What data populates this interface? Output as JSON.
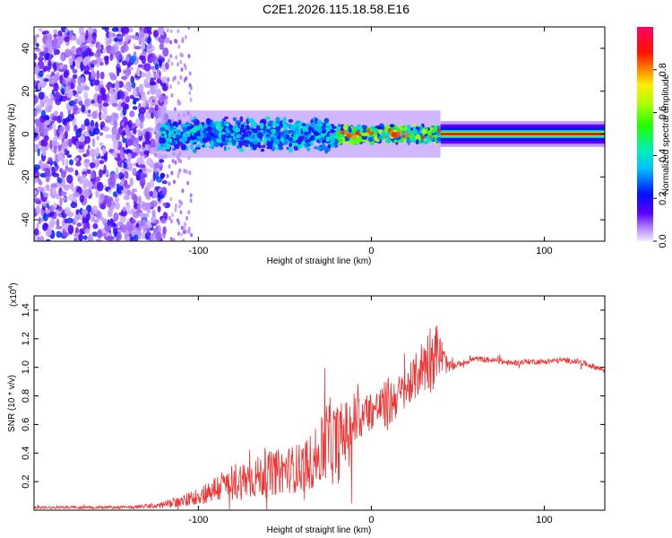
{
  "title": "C2E1.2026.115.18.58.E16",
  "chart_data": [
    {
      "type": "heatmap",
      "xlabel": "Height of straight line (km)",
      "ylabel": "Frequency (Hz)",
      "xlim": [
        -195,
        135
      ],
      "ylim": [
        -50,
        50
      ],
      "xticks": [
        -100,
        0,
        100
      ],
      "yticks": [
        -40,
        -20,
        0,
        20,
        40
      ],
      "colorbar": {
        "label": "Normalized spectral amplitude",
        "range": [
          0,
          1
        ],
        "ticks": [
          "0.0",
          "0.2",
          "0.4",
          "0.6",
          "0.8"
        ],
        "tick_values": [
          0.0,
          0.2,
          0.4,
          0.6,
          0.8
        ]
      },
      "regions": [
        {
          "x": [
            -195,
            -120
          ],
          "freq_band": [
            -50,
            50
          ],
          "level": "scattered 0.1-0.3"
        },
        {
          "x": [
            -120,
            -20
          ],
          "freq_band": [
            -10,
            10
          ],
          "level": "0.2-0.5"
        },
        {
          "x": [
            -20,
            40
          ],
          "freq_band": [
            -5,
            5
          ],
          "level": "0.4-0.9"
        },
        {
          "x": [
            40,
            135
          ],
          "freq_band": [
            -3,
            3
          ],
          "level": "0.9 centered at 0 Hz"
        }
      ]
    },
    {
      "type": "line",
      "xlabel": "Height of straight line (km)",
      "ylabel": "SNR (10 * v/v)",
      "y_multiplier": "(x10",
      "y_multiplier_exp": "4",
      "xlim": [
        -195,
        135
      ],
      "ylim": [
        0,
        1.5
      ],
      "xticks": [
        -100,
        0,
        100
      ],
      "yticks": [
        0.2,
        0.4,
        0.6,
        0.8,
        1.0,
        1.2,
        1.4
      ],
      "series": [
        {
          "name": "SNR",
          "color": "#ee3333",
          "x": [
            -195,
            -140,
            -125,
            -110,
            -100,
            -90,
            -80,
            -70,
            -60,
            -50,
            -40,
            -30,
            -25,
            -20,
            -15,
            -10,
            -5,
            0,
            5,
            10,
            15,
            20,
            25,
            30,
            35,
            38,
            42,
            45,
            50,
            55,
            60,
            70,
            80,
            90,
            100,
            110,
            120,
            130,
            135
          ],
          "mean": [
            0.02,
            0.02,
            0.03,
            0.06,
            0.1,
            0.15,
            0.2,
            0.22,
            0.25,
            0.28,
            0.3,
            0.38,
            0.5,
            0.45,
            0.55,
            0.62,
            0.66,
            0.7,
            0.72,
            0.74,
            0.8,
            0.84,
            0.92,
            1.02,
            1.08,
            1.12,
            1.05,
            1.0,
            1.02,
            1.04,
            1.06,
            1.05,
            1.03,
            1.04,
            1.04,
            1.05,
            1.04,
            1.0,
            0.98
          ],
          "noise": [
            0.01,
            0.01,
            0.02,
            0.04,
            0.06,
            0.1,
            0.14,
            0.14,
            0.16,
            0.16,
            0.18,
            0.22,
            0.3,
            0.3,
            0.22,
            0.22,
            0.16,
            0.14,
            0.14,
            0.2,
            0.14,
            0.14,
            0.16,
            0.2,
            0.26,
            0.2,
            0.1,
            0.04,
            0.02,
            0.02,
            0.02,
            0.02,
            0.02,
            0.02,
            0.02,
            0.02,
            0.02,
            0.02,
            0.02
          ]
        }
      ]
    }
  ]
}
